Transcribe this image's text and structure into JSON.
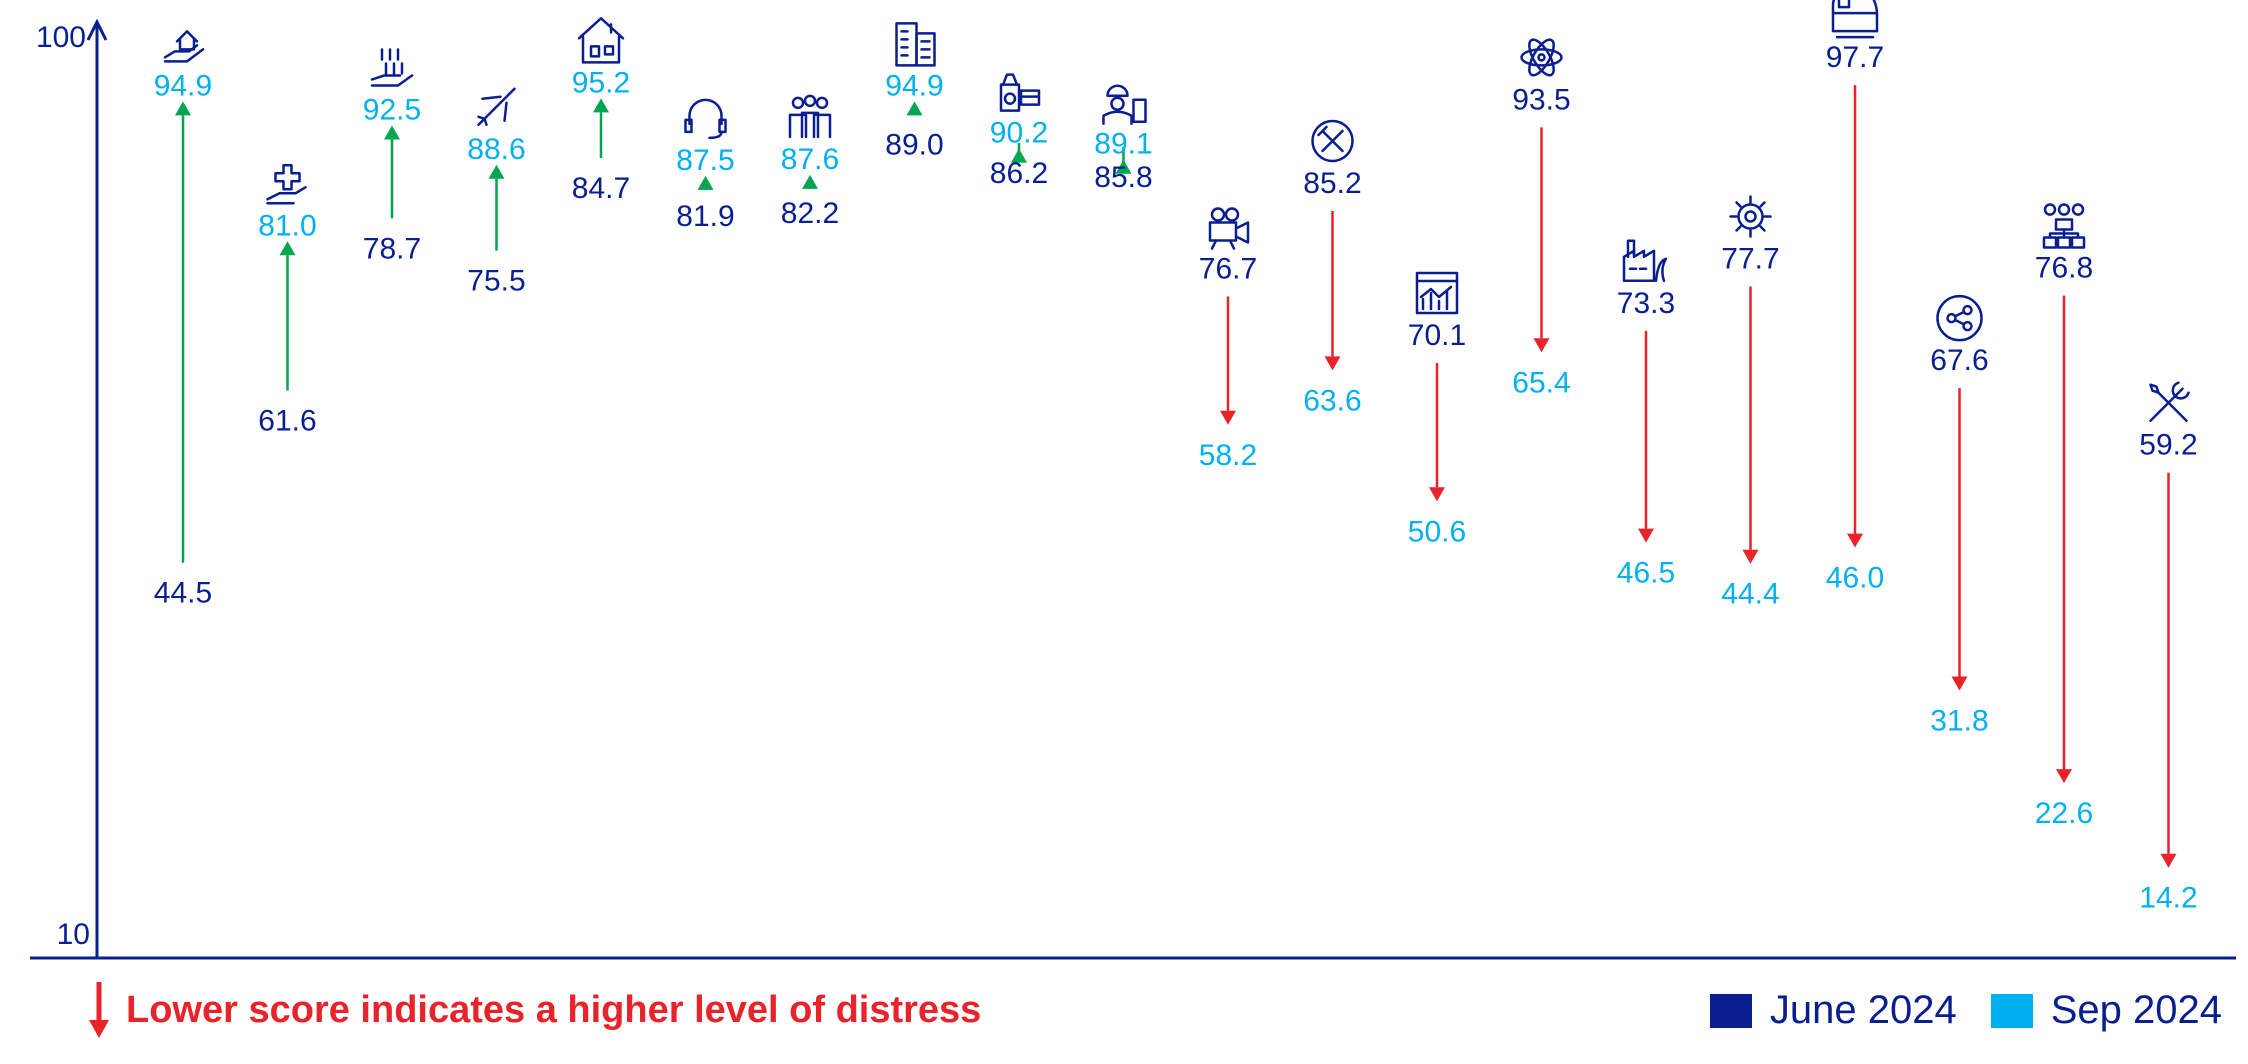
{
  "colors": {
    "june": "#0a1f8f",
    "sep": "#00b0f0",
    "up": "#00a650",
    "down": "#e8232a",
    "axis": "#0a1f8f"
  },
  "note": "Lower score indicates a higher level of distress",
  "chart_data": {
    "type": "dumbbell-arrow",
    "ylim": [
      10,
      100
    ],
    "yticks": [
      "10",
      "100"
    ],
    "legend": [
      {
        "name": "June 2024",
        "color": "#0a1f8f"
      },
      {
        "name": "Sep 2024",
        "color": "#00b0f0"
      }
    ],
    "legend_position": "bottom-right",
    "categories": [
      {
        "icon": "hand-house-icon",
        "june": 44.5,
        "sep": 94.9
      },
      {
        "icon": "hand-medical-cross-icon",
        "june": 61.6,
        "sep": 81.0
      },
      {
        "icon": "hand-binary-data-icon",
        "june": 78.7,
        "sep": 92.5
      },
      {
        "icon": "airplane-icon",
        "june": 75.5,
        "sep": 88.6
      },
      {
        "icon": "house-icon",
        "june": 84.7,
        "sep": 95.2
      },
      {
        "icon": "headset-icon",
        "june": 81.9,
        "sep": 87.5
      },
      {
        "icon": "people-group-icon",
        "june": 82.2,
        "sep": 87.6
      },
      {
        "icon": "office-building-icon",
        "june": 89.0,
        "sep": 94.9
      },
      {
        "icon": "fast-food-icon",
        "june": 86.2,
        "sep": 90.2
      },
      {
        "icon": "construction-worker-icon",
        "june": 85.8,
        "sep": 89.1
      },
      {
        "icon": "video-camera-icon",
        "june": 76.7,
        "sep": 58.2
      },
      {
        "icon": "fork-knife-icon",
        "june": 85.2,
        "sep": 63.6
      },
      {
        "icon": "chart-report-icon",
        "june": 70.1,
        "sep": 50.6
      },
      {
        "icon": "atom-icon",
        "june": 93.5,
        "sep": 65.4
      },
      {
        "icon": "factory-icon",
        "june": 73.3,
        "sep": 46.5
      },
      {
        "icon": "gear-circuit-icon",
        "june": 77.7,
        "sep": 44.4
      },
      {
        "icon": "train-icon",
        "june": 97.7,
        "sep": 46.0
      },
      {
        "icon": "network-share-icon",
        "june": 67.6,
        "sep": 31.8
      },
      {
        "icon": "org-structure-icon",
        "june": 76.8,
        "sep": 22.6
      },
      {
        "icon": "tools-icon",
        "june": 59.2,
        "sep": 14.2
      }
    ]
  }
}
